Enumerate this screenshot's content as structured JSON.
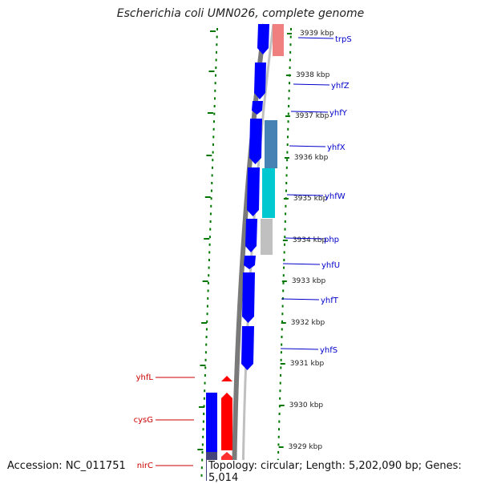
{
  "title": "Escherichia coli UMN026, complete genome",
  "accession": "Accession: NC_011751",
  "topology": "Topology: circular; Length: 5,202,090 bp; Genes: 5,014",
  "colors": {
    "forward_gene": "#0000ff",
    "reverse_gene": "#ff0000",
    "label_right": "#0000cc",
    "label_left": "#cc0000",
    "tick": "#007700",
    "backbone": "#888888"
  },
  "kbp_ticks": [
    "3939 kbp",
    "3938 kbp",
    "3937 kbp",
    "3936 kbp",
    "3935 kbp",
    "3934 kbp",
    "3933 kbp",
    "3932 kbp",
    "3931 kbp",
    "3930 kbp",
    "3929 kbp"
  ],
  "right_genes": [
    "trpS",
    "yhfZ",
    "yhfY",
    "yhfX",
    "yhfW",
    "php",
    "yhfU",
    "yhfT",
    "yhfS"
  ],
  "left_genes": [
    "yhfL",
    "cysG",
    "nirC"
  ]
}
